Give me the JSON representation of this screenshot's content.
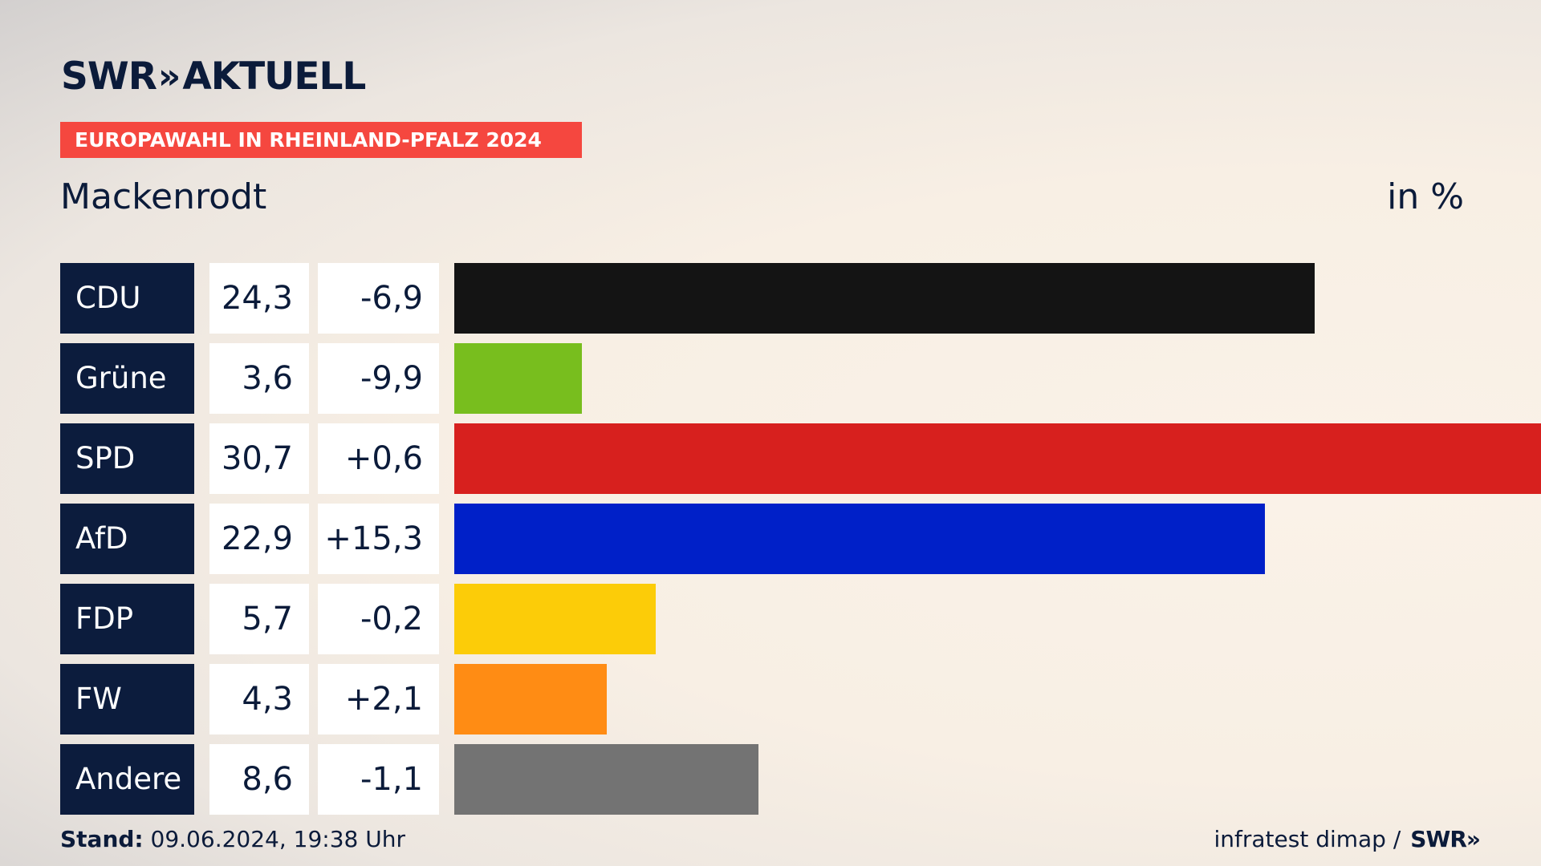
{
  "brand": {
    "logo_text": "SWR",
    "logo_chevrons": "»",
    "logo_title": "AKTUELL"
  },
  "banner": "EUROPAWAHL IN RHEINLAND-PFALZ 2024",
  "location": "Mackenrodt",
  "unit": "in %",
  "colors": {
    "navy": "#0c1c3d",
    "banner": "#f5473f"
  },
  "chart_data": {
    "type": "bar",
    "orientation": "horizontal",
    "categories": [
      "CDU",
      "Grüne",
      "SPD",
      "AfD",
      "FDP",
      "FW",
      "Andere"
    ],
    "values": [
      24.3,
      3.6,
      30.7,
      22.9,
      5.7,
      4.3,
      8.6
    ],
    "value_labels": [
      "24,3",
      "3,6",
      "30,7",
      "22,9",
      "5,7",
      "4,3",
      "8,6"
    ],
    "change_labels": [
      "-6,9",
      "-9,9",
      "+0,6",
      "+15,3",
      "-0,2",
      "+2,1",
      "-1,1"
    ],
    "colors": [
      "#141414",
      "#78be1e",
      "#d7201e",
      "#0020c8",
      "#fccc08",
      "#ff8c14",
      "#737373"
    ],
    "xlim": [
      0,
      30.7
    ]
  },
  "footer": {
    "stand_label": "Stand:",
    "stand_value": "09.06.2024, 19:38 Uhr",
    "source": "infratest dimap /",
    "source_logo": "SWR»"
  }
}
